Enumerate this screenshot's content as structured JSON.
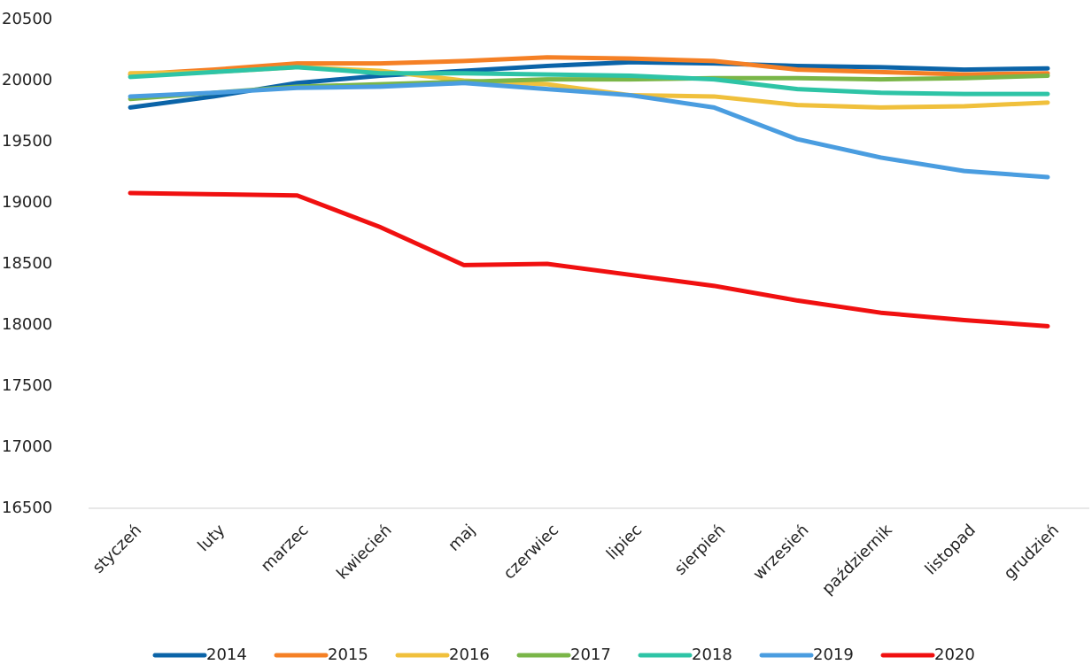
{
  "chart_data": {
    "type": "line",
    "categories": [
      "styczeń",
      "luty",
      "marzec",
      "kwiecień",
      "maj",
      "czerwiec",
      "lipiec",
      "sierpień",
      "wrzesień",
      "październik",
      "listopad",
      "grudzień"
    ],
    "ylim": [
      16500,
      20500
    ],
    "yticks": [
      16500,
      17000,
      17500,
      18000,
      18500,
      19000,
      19500,
      20000,
      20500
    ],
    "grid": false,
    "legend": "bottom",
    "series": [
      {
        "name": "2014",
        "color": "#0b64a8",
        "values": [
          19780,
          19870,
          19980,
          20040,
          20080,
          20120,
          20150,
          20140,
          20120,
          20110,
          20090,
          20100
        ]
      },
      {
        "name": "2015",
        "color": "#f58025",
        "values": [
          20050,
          20090,
          20140,
          20140,
          20160,
          20190,
          20180,
          20160,
          20090,
          20070,
          20050,
          20060
        ]
      },
      {
        "name": "2016",
        "color": "#f0c03c",
        "values": [
          20060,
          20070,
          20110,
          20080,
          20000,
          19970,
          19880,
          19870,
          19800,
          19780,
          19790,
          19820
        ]
      },
      {
        "name": "2017",
        "color": "#7ab648",
        "values": [
          19850,
          19900,
          19950,
          19970,
          19990,
          20010,
          20010,
          20020,
          20020,
          20010,
          20020,
          20040
        ]
      },
      {
        "name": "2018",
        "color": "#2ec4a6",
        "values": [
          20030,
          20070,
          20110,
          20060,
          20060,
          20050,
          20040,
          20010,
          19930,
          19900,
          19890,
          19890
        ]
      },
      {
        "name": "2019",
        "color": "#4a9de0",
        "values": [
          19870,
          19900,
          19940,
          19950,
          19980,
          19930,
          19880,
          19780,
          19520,
          19370,
          19260,
          19210
        ]
      },
      {
        "name": "2020",
        "color": "#f01010",
        "values": [
          19080,
          19070,
          19060,
          18800,
          18490,
          18500,
          18410,
          18320,
          18200,
          18100,
          18040,
          17990
        ]
      }
    ]
  }
}
